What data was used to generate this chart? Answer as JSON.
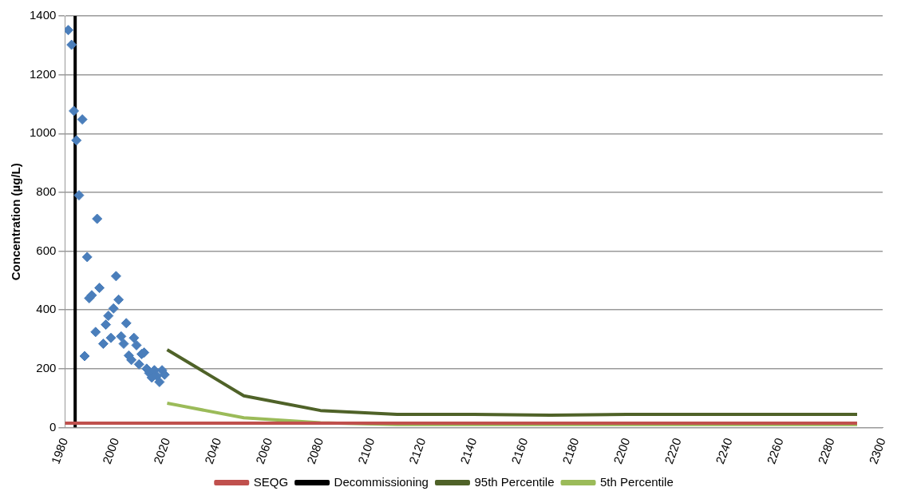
{
  "chart_data": {
    "type": "scatter",
    "ylabel": "Concentration (µg/L)",
    "xlim": [
      1980,
      2300
    ],
    "xticks": [
      1980,
      2000,
      2020,
      2040,
      2060,
      2080,
      2100,
      2120,
      2140,
      2160,
      2180,
      2200,
      2220,
      2240,
      2260,
      2280,
      2300
    ],
    "ylim": [
      0,
      1400
    ],
    "yticks": [
      0,
      200,
      400,
      600,
      800,
      1000,
      1200,
      1400
    ],
    "grid": "y",
    "legend": "bottom",
    "series": [
      {
        "marker": "diamond",
        "color": "#4a7ebb",
        "x": [
          1981.3,
          1982.6,
          1983.5,
          1984.5,
          1985.5,
          1986.8,
          1987.7,
          1988.7,
          1989.5,
          1990.5,
          1992,
          1992.6,
          1993.5,
          1995,
          1996,
          1997,
          1998,
          1999,
          2000,
          2001,
          2002,
          2003,
          2004,
          2005,
          2006,
          2007,
          2008,
          2009,
          2010,
          2011,
          2012,
          2013,
          2014,
          2015,
          2016,
          2017,
          2018,
          2019
        ],
        "values": [
          1352,
          1302,
          1077,
          977,
          790,
          1048,
          243,
          580,
          440,
          450,
          325,
          710,
          475,
          285,
          350,
          380,
          305,
          405,
          515,
          435,
          310,
          285,
          355,
          245,
          230,
          305,
          280,
          215,
          250,
          255,
          200,
          185,
          170,
          195,
          175,
          155,
          195,
          180
        ]
      },
      {
        "type": "line",
        "name": "SEQG",
        "color": "#c0504d",
        "x": [
          1980,
          2290
        ],
        "values": [
          15,
          15
        ]
      },
      {
        "type": "line",
        "name": "Decommissioning",
        "color": "#000000",
        "x": [
          1984,
          1984
        ],
        "values": [
          0,
          1400
        ]
      },
      {
        "type": "line",
        "name": "95th Percentile",
        "color": "#4f6228",
        "x": [
          2020,
          2050,
          2080,
          2110,
          2140,
          2170,
          2200,
          2230,
          2260,
          2290
        ],
        "values": [
          265,
          108,
          58,
          45,
          45,
          42,
          45,
          45,
          45,
          45
        ]
      },
      {
        "type": "line",
        "name": "5th Percentile",
        "color": "#9bbb59",
        "x": [
          2020,
          2050,
          2080,
          2110,
          2140,
          2170,
          2200,
          2230,
          2260,
          2290
        ],
        "values": [
          83,
          33,
          16,
          10,
          10,
          10,
          10,
          10,
          10,
          10
        ]
      }
    ]
  }
}
